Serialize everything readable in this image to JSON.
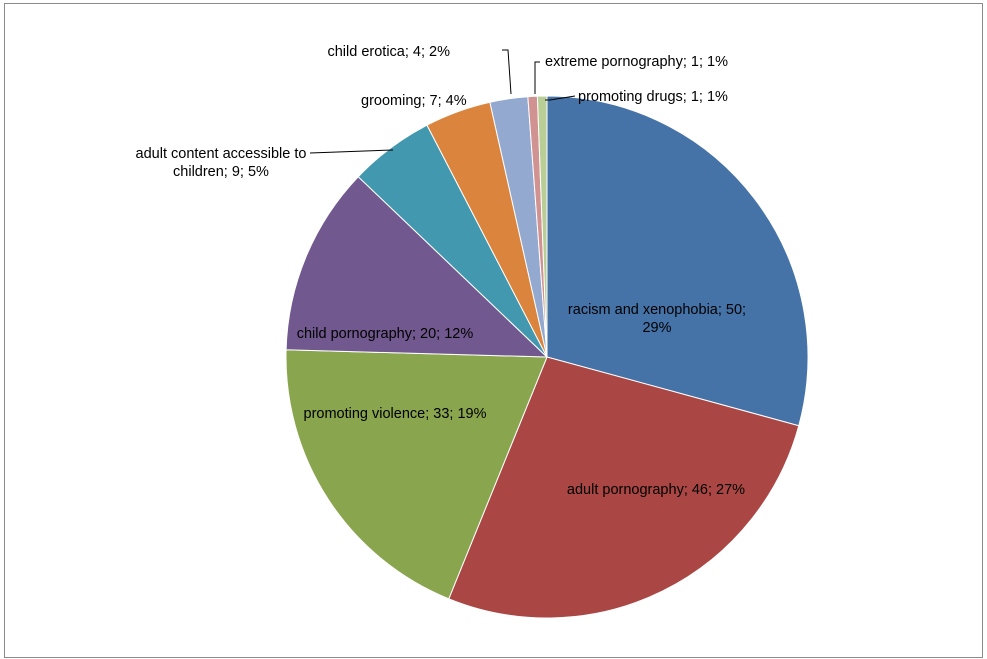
{
  "chart_data": {
    "type": "pie",
    "title": "",
    "legend": "none",
    "series": [
      {
        "name": "",
        "slices": [
          {
            "category": "racism and xenophobia",
            "value": 50,
            "percent": "29%",
            "label": [
              "racism and xenophobia; 50;",
              "29%"
            ],
            "color": "#4572A7"
          },
          {
            "category": "adult pornography",
            "value": 46,
            "percent": "27%",
            "label": [
              "adult pornography; 46; 27%"
            ],
            "color": "#AA4643"
          },
          {
            "category": "promoting violence",
            "value": 33,
            "percent": "19%",
            "label": [
              "promoting violence; 33; 19%"
            ],
            "color": "#89A54E"
          },
          {
            "category": "child pornography",
            "value": 20,
            "percent": "12%",
            "label": [
              "child pornography; 20; 12%"
            ],
            "color": "#71588F"
          },
          {
            "category": "adult content accessible to children",
            "value": 9,
            "percent": "5%",
            "label": [
              "adult content accessible to",
              "children; 9; 5%"
            ],
            "color": "#4198AF"
          },
          {
            "category": "grooming",
            "value": 7,
            "percent": "4%",
            "label": [
              "grooming; 7; 4%"
            ],
            "color": "#DB843D"
          },
          {
            "category": "child erotica",
            "value": 4,
            "percent": "2%",
            "label": [
              "child erotica; 4; 2%"
            ],
            "color": "#93A9CF"
          },
          {
            "category": "extreme pornography",
            "value": 1,
            "percent": "1%",
            "label": [
              "extreme pornography; 1; 1%"
            ],
            "color": "#D09392"
          },
          {
            "category": "promoting drugs",
            "value": 1,
            "percent": "1%",
            "label": [
              "promoting drugs; 1; 1%"
            ],
            "color": "#B9CD96"
          }
        ]
      }
    ]
  }
}
